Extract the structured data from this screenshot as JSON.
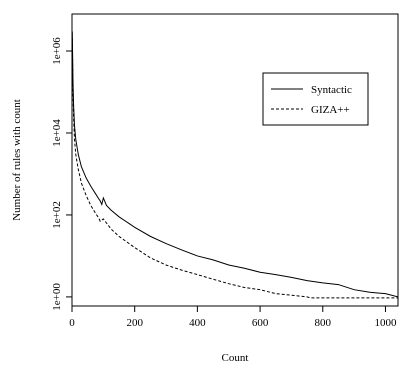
{
  "chart_data": {
    "type": "line",
    "title": "",
    "xlabel": "Count",
    "ylabel": "Number of rules with count",
    "y_scale": "log",
    "xlim": [
      0,
      1040
    ],
    "ylim": [
      0.6,
      8000000
    ],
    "grid": false,
    "legend_position": "top-right",
    "x_ticks": [
      0,
      200,
      400,
      600,
      800,
      1000
    ],
    "x_tick_labels": [
      "0",
      "200",
      "400",
      "600",
      "800",
      "1000"
    ],
    "y_ticks": [
      1,
      100,
      10000,
      1000000
    ],
    "y_tick_labels": [
      "1e+00",
      "1e+02",
      "1e+04",
      "1e+06"
    ],
    "series": [
      {
        "name": "Syntactic",
        "line_style": "solid",
        "color": "#000000",
        "x": [
          1,
          2,
          3,
          5,
          8,
          12,
          20,
          30,
          45,
          60,
          75,
          85,
          90,
          95,
          100,
          110,
          125,
          150,
          200,
          250,
          300,
          350,
          400,
          450,
          500,
          550,
          600,
          650,
          700,
          750,
          800,
          850,
          900,
          950,
          1000,
          1040
        ],
        "y": [
          3000000,
          700000,
          200000,
          50000,
          15000,
          7000,
          3000,
          1500,
          800,
          500,
          330,
          250,
          220,
          180,
          260,
          170,
          130,
          90,
          50,
          30,
          20,
          14,
          10,
          8,
          6,
          5,
          4,
          3.5,
          3,
          2.5,
          2.2,
          2,
          1.5,
          1.3,
          1.2,
          1
        ]
      },
      {
        "name": "GIZA++",
        "line_style": "dashed",
        "color": "#000000",
        "x": [
          1,
          2,
          3,
          5,
          8,
          12,
          20,
          30,
          45,
          60,
          75,
          85,
          90,
          100,
          125,
          150,
          200,
          250,
          300,
          350,
          400,
          450,
          500,
          550,
          600,
          650,
          700,
          750,
          760,
          800,
          850,
          900,
          950,
          1000,
          1040
        ],
        "y": [
          2000000,
          500000,
          120000,
          25000,
          7000,
          3000,
          1300,
          600,
          300,
          170,
          110,
          85,
          70,
          80,
          45,
          30,
          16,
          9,
          6,
          4.5,
          3.5,
          2.7,
          2.1,
          1.7,
          1.5,
          1.2,
          1.1,
          1,
          0.95,
          0.95,
          0.95,
          0.95,
          0.95,
          0.95,
          0.95
        ]
      }
    ]
  }
}
